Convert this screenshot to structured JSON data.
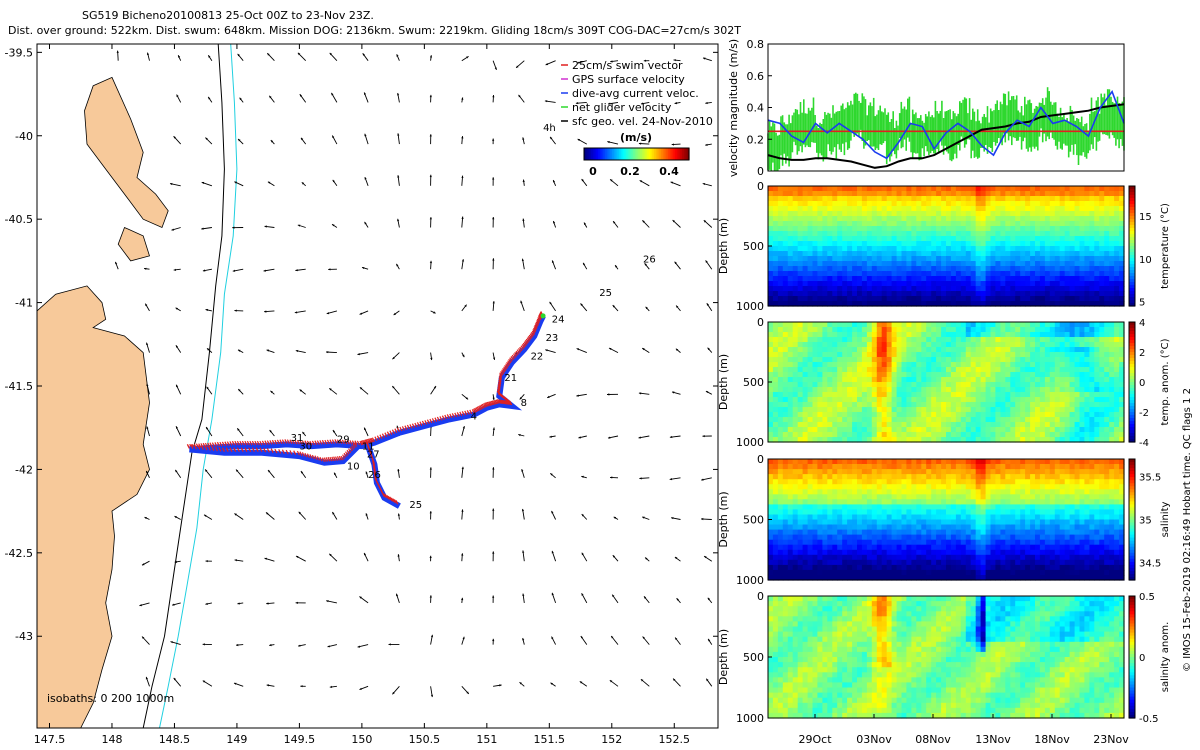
{
  "header": {
    "line1": "SG519 Bicheno20100813 25-Oct 00Z to 23-Nov 23Z.",
    "line2": "Dist. over ground: 522km. Dist. swum: 648km. Mission DOG: 2136km. Swum: 2219km. Gliding 18cm/s 309T COG-DAC=27cm/s 302T"
  },
  "colors": {
    "land": "#f7c99a",
    "swim": "#e02020",
    "gps": "#d030d0",
    "dac": "#1a3cf0",
    "net": "#2ed82e",
    "sfc": "#000000",
    "isobath200": "#000000",
    "isobath1000": "#20d0e0"
  },
  "footer_credit": "© IMOS 15-Feb-2019 02:16:49 Hobart time. QC flags 1  2",
  "chart_data": [
    {
      "type": "scatter",
      "name": "map",
      "xlim": [
        147.4,
        152.85
      ],
      "ylim": [
        -43.55,
        -39.45
      ],
      "xticks": [
        147.5,
        148,
        148.5,
        149,
        149.5,
        150,
        150.5,
        151,
        151.5,
        152,
        152.5
      ],
      "yticks": [
        -39.5,
        -40,
        -40.5,
        -41,
        -41.5,
        -42,
        -42.5,
        -43
      ],
      "xticklabels": [
        "147.5",
        "148",
        "148.5",
        "149",
        "149.5",
        "150",
        "150.5",
        "151",
        "151.5",
        "152",
        "152.5"
      ],
      "yticklabels": [
        "-39.5",
        "-40",
        "-40.5",
        "-41",
        "-41.5",
        "-42",
        "-42.5",
        "-43"
      ],
      "legend": {
        "placement": "top-right",
        "items": [
          {
            "label": "25cm/s swim vector",
            "color": "#e02020"
          },
          {
            "label": "GPS surface velocity",
            "color": "#d030d0"
          },
          {
            "label": "dive-avg current veloc.",
            "color": "#1a3cf0"
          },
          {
            "label": "net glider velocity",
            "color": "#2ed82e"
          },
          {
            "label": "sfc geo. vel. 24-Nov-2010",
            "color": "#000000"
          }
        ]
      },
      "colorbar": {
        "label": "(m/s)",
        "ticks": [
          "0",
          "0.2",
          "0.4"
        ],
        "range": [
          0,
          0.45
        ]
      },
      "isobath_label": "isobaths: 0   200  1000m",
      "track": [
        [
          148.62,
          -41.88
        ],
        [
          148.8,
          -41.87
        ],
        [
          149.0,
          -41.86
        ],
        [
          149.2,
          -41.86
        ],
        [
          149.4,
          -41.85
        ],
        [
          149.6,
          -41.86
        ],
        [
          149.8,
          -41.85
        ],
        [
          150.0,
          -41.86
        ],
        [
          150.1,
          -41.84
        ],
        [
          150.3,
          -41.78
        ],
        [
          150.5,
          -41.74
        ],
        [
          150.7,
          -41.7
        ],
        [
          150.9,
          -41.67
        ],
        [
          151.0,
          -41.63
        ],
        [
          151.1,
          -41.61
        ],
        [
          151.2,
          -41.62
        ],
        [
          151.1,
          -41.56
        ],
        [
          151.12,
          -41.45
        ],
        [
          151.2,
          -41.36
        ],
        [
          151.3,
          -41.28
        ],
        [
          151.38,
          -41.2
        ],
        [
          151.43,
          -41.11
        ],
        [
          151.45,
          -41.08
        ]
      ],
      "branch_west": [
        [
          148.62,
          -41.88
        ],
        [
          148.9,
          -41.9
        ],
        [
          149.2,
          -41.9
        ],
        [
          149.5,
          -41.92
        ],
        [
          149.7,
          -41.96
        ],
        [
          149.85,
          -41.95
        ],
        [
          149.97,
          -41.86
        ]
      ],
      "branch_south": [
        [
          150.05,
          -41.86
        ],
        [
          150.1,
          -41.97
        ],
        [
          150.12,
          -42.08
        ],
        [
          150.18,
          -42.17
        ],
        [
          150.3,
          -42.22
        ]
      ],
      "labels": [
        {
          "text": "24",
          "x": 151.52,
          "y": -41.12
        },
        {
          "text": "23",
          "x": 151.47,
          "y": -41.23
        },
        {
          "text": "22",
          "x": 151.35,
          "y": -41.34
        },
        {
          "text": "21",
          "x": 151.14,
          "y": -41.47
        },
        {
          "text": "4",
          "x": 150.87,
          "y": -41.7
        },
        {
          "text": "8",
          "x": 151.27,
          "y": -41.62
        },
        {
          "text": "31",
          "x": 149.43,
          "y": -41.83
        },
        {
          "text": "30",
          "x": 149.5,
          "y": -41.88
        },
        {
          "text": "29",
          "x": 149.8,
          "y": -41.84
        },
        {
          "text": "11",
          "x": 150.0,
          "y": -41.88
        },
        {
          "text": "27",
          "x": 150.04,
          "y": -41.93
        },
        {
          "text": "10",
          "x": 149.88,
          "y": -42.0
        },
        {
          "text": "26",
          "x": 150.05,
          "y": -42.05
        },
        {
          "text": "25",
          "x": 150.38,
          "y": -42.23
        },
        {
          "text": "25",
          "x": 151.9,
          "y": -40.96
        },
        {
          "text": "26",
          "x": 152.25,
          "y": -40.76
        },
        {
          "text": "4h",
          "x": 151.45,
          "y": -39.97
        }
      ]
    },
    {
      "type": "line",
      "name": "velocity",
      "xlim": [
        0,
        30
      ],
      "ylim": [
        0,
        0.8
      ],
      "yticks": [
        0,
        0.2,
        0.4,
        0.6,
        0.8
      ],
      "ylabel": "velocity magnitude (m/s)",
      "series": [
        {
          "name": "swim",
          "color": "#e02020",
          "values": [
            0.25,
            0.25,
            0.25,
            0.25,
            0.25,
            0.25,
            0.25,
            0.25,
            0.25,
            0.25,
            0.25,
            0.25,
            0.25,
            0.25,
            0.25,
            0.25,
            0.25,
            0.25,
            0.25,
            0.25,
            0.25,
            0.25,
            0.25,
            0.25,
            0.25,
            0.25,
            0.25,
            0.25,
            0.25,
            0.25,
            0.25
          ]
        },
        {
          "name": "dive-avg",
          "color": "#1a3cf0",
          "values": [
            0.32,
            0.3,
            0.22,
            0.18,
            0.3,
            0.24,
            0.3,
            0.25,
            0.2,
            0.12,
            0.08,
            0.18,
            0.3,
            0.28,
            0.14,
            0.24,
            0.3,
            0.25,
            0.16,
            0.1,
            0.24,
            0.32,
            0.28,
            0.4,
            0.3,
            0.32,
            0.28,
            0.22,
            0.4,
            0.5,
            0.3
          ]
        },
        {
          "name": "net",
          "color": "#2ed82e",
          "values": [
            0.15,
            0.2,
            0.28,
            0.3,
            0.22,
            0.25,
            0.28,
            0.34,
            0.3,
            0.28,
            0.22,
            0.3,
            0.22,
            0.25,
            0.28,
            0.22,
            0.3,
            0.24,
            0.25,
            0.32,
            0.34,
            0.3,
            0.3,
            0.36,
            0.28,
            0.25,
            0.2,
            0.3,
            0.36,
            0.32,
            0.3
          ]
        },
        {
          "name": "sfc",
          "color": "#000000",
          "values": [
            0.1,
            0.08,
            0.07,
            0.07,
            0.08,
            0.08,
            0.07,
            0.06,
            0.04,
            0.02,
            0.03,
            0.06,
            0.08,
            0.08,
            0.1,
            0.14,
            0.18,
            0.22,
            0.26,
            0.27,
            0.28,
            0.3,
            0.31,
            0.34,
            0.35,
            0.36,
            0.37,
            0.38,
            0.4,
            0.41,
            0.42
          ]
        }
      ]
    },
    {
      "type": "heatmap",
      "name": "temperature",
      "ylabel": "Depth (m)",
      "cbar_label": "temperature (°C)",
      "yticks": [
        "0",
        "500",
        "1000"
      ],
      "cbar_ticks": [
        "5",
        "10",
        "15"
      ],
      "range": [
        4.5,
        18.5
      ],
      "shallow": 15.5,
      "deep": 5.5
    },
    {
      "type": "heatmap",
      "name": "temp_anom",
      "ylabel": "Depth (m)",
      "cbar_label": "temp. anom. (°C)",
      "yticks": [
        "0",
        "500",
        "1000"
      ],
      "cbar_ticks": [
        "-4",
        "-2",
        "0",
        "2",
        "4"
      ],
      "range": [
        -4,
        4
      ]
    },
    {
      "type": "heatmap",
      "name": "salinity",
      "ylabel": "Depth (m)",
      "cbar_label": "salinity",
      "yticks": [
        "0",
        "500",
        "1000"
      ],
      "cbar_ticks": [
        "34.5",
        "35",
        "35.5"
      ],
      "range": [
        34.3,
        35.7
      ]
    },
    {
      "type": "heatmap",
      "name": "salinity_anom",
      "ylabel": "Depth (m)",
      "cbar_label": "salinity anom.",
      "yticks": [
        "0",
        "500",
        "1000"
      ],
      "cbar_ticks": [
        "0.5",
        "0",
        "-0.5"
      ],
      "range": [
        -0.5,
        0.5
      ],
      "xticklabels": [
        "29Oct",
        "03Nov",
        "08Nov",
        "13Nov",
        "18Nov",
        "23Nov"
      ]
    }
  ]
}
